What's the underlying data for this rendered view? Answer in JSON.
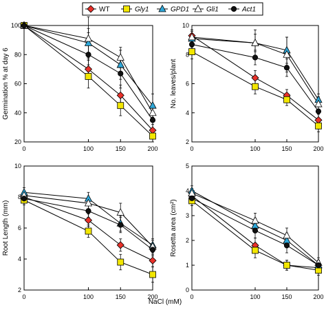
{
  "colors": {
    "WT": "#e8312a",
    "Gly1": "#f2e600",
    "GPD1": "#2ea7d8",
    "Gli1": "#ffffff",
    "Act1": "#111111"
  },
  "chart_data": [
    {
      "type": "line",
      "ylabel": "Germination % at day 6",
      "xlabel": "",
      "x": [
        0,
        100,
        150,
        200
      ],
      "xticks": [
        "0",
        "100",
        "150",
        "200"
      ],
      "ylim": [
        20,
        100
      ],
      "yticks": [
        "20",
        "40",
        "60",
        "80",
        "100"
      ],
      "ytick_values": [
        20,
        40,
        60,
        80,
        100
      ],
      "series": [
        {
          "name": "WT",
          "values": [
            100,
            70,
            52,
            28
          ],
          "err": [
            0,
            7,
            7,
            4
          ],
          "marker": "diamond"
        },
        {
          "name": "Gly1",
          "values": [
            100,
            65,
            45,
            24
          ],
          "err": [
            0,
            8,
            7,
            4
          ],
          "marker": "square"
        },
        {
          "name": "GPD1",
          "values": [
            100,
            88,
            73,
            45
          ],
          "err": [
            0,
            10,
            10,
            8
          ],
          "marker": "triangle"
        },
        {
          "name": "Gli1",
          "values": [
            100,
            91,
            78,
            40
          ],
          "err": [
            0,
            15,
            7,
            5
          ],
          "marker": "triangle-open"
        },
        {
          "name": "Act1",
          "values": [
            100,
            80,
            67,
            35
          ],
          "err": [
            0,
            15,
            10,
            6
          ],
          "marker": "circle"
        }
      ]
    },
    {
      "type": "line",
      "ylabel": "No. leaves/plant",
      "xlabel": "",
      "x": [
        0,
        100,
        150,
        200
      ],
      "xticks": [
        "0",
        "100",
        "150",
        "200"
      ],
      "ylim": [
        2,
        10
      ],
      "yticks": [
        "2",
        "4",
        "6",
        "8",
        "10"
      ],
      "ytick_values": [
        2,
        4,
        6,
        8,
        10
      ],
      "series": [
        {
          "name": "WT",
          "values": [
            9.3,
            6.4,
            5.2,
            3.5
          ],
          "err": [
            0.4,
            0.5,
            0.4,
            0.4
          ],
          "marker": "diamond"
        },
        {
          "name": "Gly1",
          "values": [
            8.2,
            5.8,
            4.9,
            3.1
          ],
          "err": [
            0.5,
            0.5,
            0.4,
            0.4
          ],
          "marker": "square"
        },
        {
          "name": "GPD1",
          "values": [
            9.1,
            8.8,
            8.3,
            4.9
          ],
          "err": [
            0.6,
            0.6,
            0.9,
            0.4
          ],
          "marker": "triangle"
        },
        {
          "name": "Gli1",
          "values": [
            9.2,
            8.8,
            8.0,
            4.6
          ],
          "err": [
            0.4,
            0.9,
            1.2,
            0.5
          ],
          "marker": "triangle-open"
        },
        {
          "name": "Act1",
          "values": [
            8.7,
            7.8,
            7.1,
            4.1
          ],
          "err": [
            0.5,
            0.5,
            0.6,
            0.5
          ],
          "marker": "circle"
        }
      ]
    },
    {
      "type": "line",
      "ylabel": "Root Length (mm)",
      "xlabel": "",
      "x": [
        0,
        100,
        150,
        200
      ],
      "xticks": [
        "0",
        "100",
        "150",
        "200"
      ],
      "ylim": [
        2,
        10
      ],
      "yticks": [
        "2",
        "4",
        "6",
        "8",
        "10"
      ],
      "ytick_values": [
        2,
        4,
        6,
        8,
        10
      ],
      "series": [
        {
          "name": "WT",
          "values": [
            8.0,
            6.5,
            4.9,
            3.9
          ],
          "err": [
            0.3,
            0.4,
            0.4,
            0.4
          ],
          "marker": "diamond"
        },
        {
          "name": "Gly1",
          "values": [
            7.8,
            5.8,
            3.8,
            3.0
          ],
          "err": [
            0.3,
            0.4,
            0.5,
            0.5
          ],
          "marker": "square"
        },
        {
          "name": "GPD1",
          "values": [
            8.3,
            7.9,
            6.3,
            4.9
          ],
          "err": [
            0.3,
            0.4,
            0.5,
            0.4
          ],
          "marker": "triangle"
        },
        {
          "name": "Gli1",
          "values": [
            8.1,
            7.6,
            7.0,
            4.8
          ],
          "err": [
            0.3,
            0.4,
            0.6,
            0.4
          ],
          "marker": "triangle-open"
        },
        {
          "name": "Act1",
          "values": [
            7.9,
            7.1,
            6.2,
            4.6
          ],
          "err": [
            0.3,
            0.4,
            0.5,
            0.4
          ],
          "marker": "circle"
        }
      ]
    },
    {
      "type": "line",
      "ylabel": "Rosetta area (cm²)",
      "xlabel": "",
      "x": [
        0,
        100,
        150,
        200
      ],
      "xticks": [
        "0",
        "100",
        "150",
        "200"
      ],
      "ylim": [
        0,
        5
      ],
      "yticks": [
        "0",
        "1",
        "2",
        "3",
        "4",
        "5"
      ],
      "ytick_values": [
        0,
        1,
        2,
        3,
        4,
        5
      ],
      "series": [
        {
          "name": "WT",
          "values": [
            3.8,
            1.8,
            1.0,
            0.9
          ],
          "err": [
            0.2,
            0.3,
            0.2,
            0.2
          ],
          "marker": "diamond"
        },
        {
          "name": "Gly1",
          "values": [
            3.6,
            1.6,
            1.0,
            0.8
          ],
          "err": [
            0.2,
            0.3,
            0.2,
            0.2
          ],
          "marker": "square"
        },
        {
          "name": "GPD1",
          "values": [
            4.0,
            2.6,
            2.0,
            1.0
          ],
          "err": [
            0.2,
            0.3,
            0.3,
            0.2
          ],
          "marker": "triangle"
        },
        {
          "name": "Gli1",
          "values": [
            3.9,
            2.8,
            2.2,
            1.1
          ],
          "err": [
            0.2,
            0.3,
            0.3,
            0.2
          ],
          "marker": "triangle-open"
        },
        {
          "name": "Act1",
          "values": [
            3.7,
            2.4,
            1.8,
            1.0
          ],
          "err": [
            0.2,
            0.3,
            0.3,
            0.2
          ],
          "marker": "circle"
        }
      ]
    }
  ],
  "legend": [
    {
      "label": "WT",
      "italic": false,
      "series": "WT"
    },
    {
      "label": "Gly1",
      "italic": true,
      "series": "Gly1"
    },
    {
      "label": "GPD1",
      "italic": true,
      "series": "GPD1"
    },
    {
      "label": "Gli1",
      "italic": true,
      "series": "Gli1"
    },
    {
      "label": "Act1",
      "italic": true,
      "series": "Act1"
    }
  ],
  "shared_xlabel": "NaCl (mM)"
}
